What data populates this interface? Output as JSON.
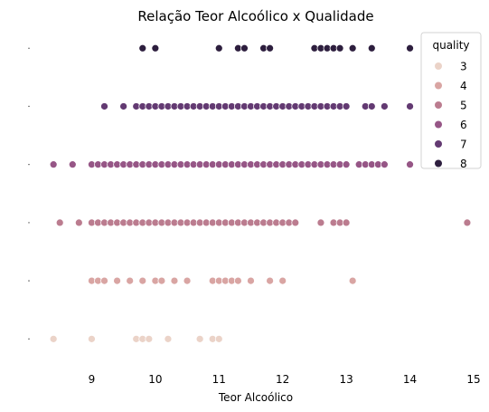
{
  "chart_data": {
    "type": "scatter",
    "title": "Relação Teor Alcoólico x Qualidade",
    "xlabel": "Teor Alcoólico",
    "ylabel": "",
    "xlim": [
      8.0,
      15.1
    ],
    "ylim": [
      2.6,
      8.3
    ],
    "xticks": [
      9,
      10,
      11,
      12,
      13,
      14,
      15
    ],
    "grid": false,
    "legend": {
      "title": "quality",
      "placement": "top-right",
      "entries": [
        "3",
        "4",
        "5",
        "6",
        "7",
        "8"
      ]
    },
    "colors": {
      "3": "#ebd3c8",
      "4": "#d9a5a3",
      "5": "#bb7c8f",
      "6": "#965686",
      "7": "#633a72",
      "8": "#2d1e3e"
    },
    "series": [
      {
        "name": "3",
        "y": 3,
        "x": [
          8.4,
          9.0,
          9.7,
          9.8,
          9.9,
          10.2,
          10.7,
          10.9,
          11.0
        ]
      },
      {
        "name": "4",
        "y": 4,
        "x": [
          9.0,
          9.1,
          9.2,
          9.4,
          9.6,
          9.8,
          10.0,
          10.1,
          10.3,
          10.5,
          10.9,
          11.0,
          11.1,
          11.2,
          11.3,
          11.5,
          11.8,
          12.0,
          13.1
        ]
      },
      {
        "name": "5",
        "y": 5,
        "x": [
          8.5,
          8.8,
          9.0,
          9.1,
          9.2,
          9.3,
          9.4,
          9.5,
          9.6,
          9.7,
          9.8,
          9.9,
          10.0,
          10.1,
          10.2,
          10.3,
          10.4,
          10.5,
          10.6,
          10.7,
          10.8,
          10.9,
          11.0,
          11.1,
          11.2,
          11.3,
          11.4,
          11.5,
          11.6,
          11.7,
          11.8,
          11.9,
          12.0,
          12.1,
          12.2,
          12.6,
          12.8,
          12.9,
          13.0,
          14.9
        ]
      },
      {
        "name": "6",
        "y": 6,
        "x": [
          8.4,
          8.7,
          9.0,
          9.1,
          9.2,
          9.3,
          9.4,
          9.5,
          9.6,
          9.7,
          9.8,
          9.9,
          10.0,
          10.1,
          10.2,
          10.3,
          10.4,
          10.5,
          10.6,
          10.7,
          10.8,
          10.9,
          11.0,
          11.1,
          11.2,
          11.3,
          11.4,
          11.5,
          11.6,
          11.7,
          11.8,
          11.9,
          12.0,
          12.1,
          12.2,
          12.3,
          12.4,
          12.5,
          12.6,
          12.7,
          12.8,
          12.9,
          13.0,
          13.2,
          13.3,
          13.4,
          13.5,
          13.6,
          14.0
        ]
      },
      {
        "name": "7",
        "y": 7,
        "x": [
          9.2,
          9.5,
          9.7,
          9.8,
          9.9,
          10.0,
          10.1,
          10.2,
          10.3,
          10.4,
          10.5,
          10.6,
          10.7,
          10.8,
          10.9,
          11.0,
          11.1,
          11.2,
          11.3,
          11.4,
          11.5,
          11.6,
          11.7,
          11.8,
          11.9,
          12.0,
          12.1,
          12.2,
          12.3,
          12.4,
          12.5,
          12.6,
          12.7,
          12.8,
          12.9,
          13.0,
          13.3,
          13.4,
          13.6,
          14.0
        ]
      },
      {
        "name": "8",
        "y": 8,
        "x": [
          9.8,
          10.0,
          11.0,
          11.3,
          11.4,
          11.7,
          11.8,
          12.5,
          12.6,
          12.7,
          12.8,
          12.9,
          13.1,
          13.4,
          14.0
        ]
      }
    ]
  }
}
